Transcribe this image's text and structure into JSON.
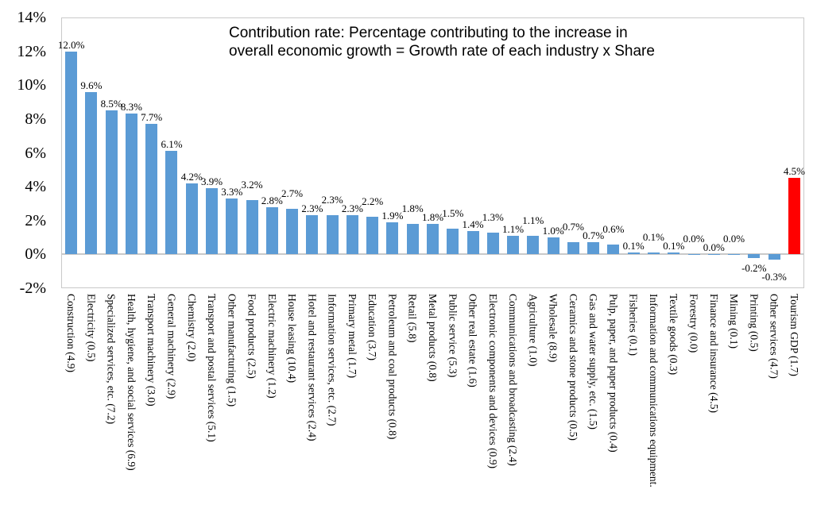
{
  "chart": {
    "title_line1": "Contribution rate: Percentage contributing to the increase in",
    "title_line2": "overall economic growth = Growth rate of each industry x Share"
  },
  "chart_data": {
    "type": "bar",
    "title": "Contribution rate: Percentage contributing to the increase in overall economic growth = Growth rate of each industry x Share",
    "xlabel": "",
    "ylabel": "",
    "ylim": [
      -2,
      14
    ],
    "yticks": [
      14,
      12,
      10,
      8,
      6,
      4,
      2,
      0,
      -2
    ],
    "ytick_labels": [
      "14%",
      "12%",
      "10%",
      "8%",
      "6%",
      "4%",
      "2%",
      "0%",
      "-2%"
    ],
    "grid": false,
    "legend": false,
    "bar_color": "#5B9BD5",
    "highlight_color": "#FF0000",
    "highlight_index": 36,
    "axis_color": "#C9C9C9",
    "categories": [
      "Construction (4.9)",
      "Electricity (0.5)",
      "Specialized services, etc. (7.2)",
      "Health, hygiene, and social services (6.9)",
      "Transport machinery (3.0)",
      "General machinery (2.9)",
      "Chemistry (2.0)",
      "Transport and postal services (5.1)",
      "Other manufacturing (1.5)",
      "Food products (2.5)",
      "Electric machinery (1.2)",
      "House leasing (10.4)",
      "Hotel and restaurant services (2.4)",
      "Information services, etc. (2.7)",
      "Primary metal (1.7)",
      "Education (3.7)",
      "Petroleum and coal products (0.8)",
      "Retail (5.8)",
      "Metal products (0.8)",
      "Public service (5.3)",
      "Other real estate (1.6)",
      "Electronic components and devices (0.9)",
      "Communications and broadcasting (2.4)",
      "Agriculture (1.0)",
      "Wholesale (8.9)",
      "Ceramics and stone products (0.5)",
      "Gas and water supply, etc. (1.5)",
      "Pulp, paper, and paper products (0.4)",
      "Fisheries (0.1)",
      "Information and communications equipment.",
      "Textile goods (0.3)",
      "Forestry (0.0)",
      "Finance and insurance (4.5)",
      "Mining (0.1)",
      "Printing (0.5)",
      "Other services (4.7)",
      "Tourism GDP (1.7)"
    ],
    "values": [
      12.0,
      9.6,
      8.5,
      8.3,
      7.7,
      6.1,
      4.2,
      3.9,
      3.3,
      3.2,
      2.8,
      2.7,
      2.3,
      2.3,
      2.3,
      2.2,
      1.9,
      1.8,
      1.8,
      1.5,
      1.4,
      1.3,
      1.1,
      1.1,
      1.0,
      0.7,
      0.7,
      0.6,
      0.1,
      0.1,
      0.1,
      0.0,
      0.0,
      0.0,
      -0.2,
      -0.3,
      4.5
    ],
    "data_labels": [
      "12.0%",
      "9.6%",
      "8.5%",
      "8.3%",
      "7.7%",
      "6.1%",
      "4.2%",
      "3.9%",
      "3.3%",
      "3.2%",
      "2.8%",
      "2.7%",
      "2.3%",
      "2.3%",
      "2.3%",
      "2.2%",
      "1.9%",
      "1.8%",
      "1.8%",
      "1.5%",
      "1.4%",
      "1.3%",
      "1.1%",
      "1.1%",
      "1.0%",
      "0.7%",
      "0.7%",
      "0.6%",
      "0.1%",
      "0.1%",
      "0.1%",
      "0.0%",
      "0.0%",
      "0.0%",
      "-0.2%",
      "-0.3%",
      "4.5%"
    ]
  }
}
